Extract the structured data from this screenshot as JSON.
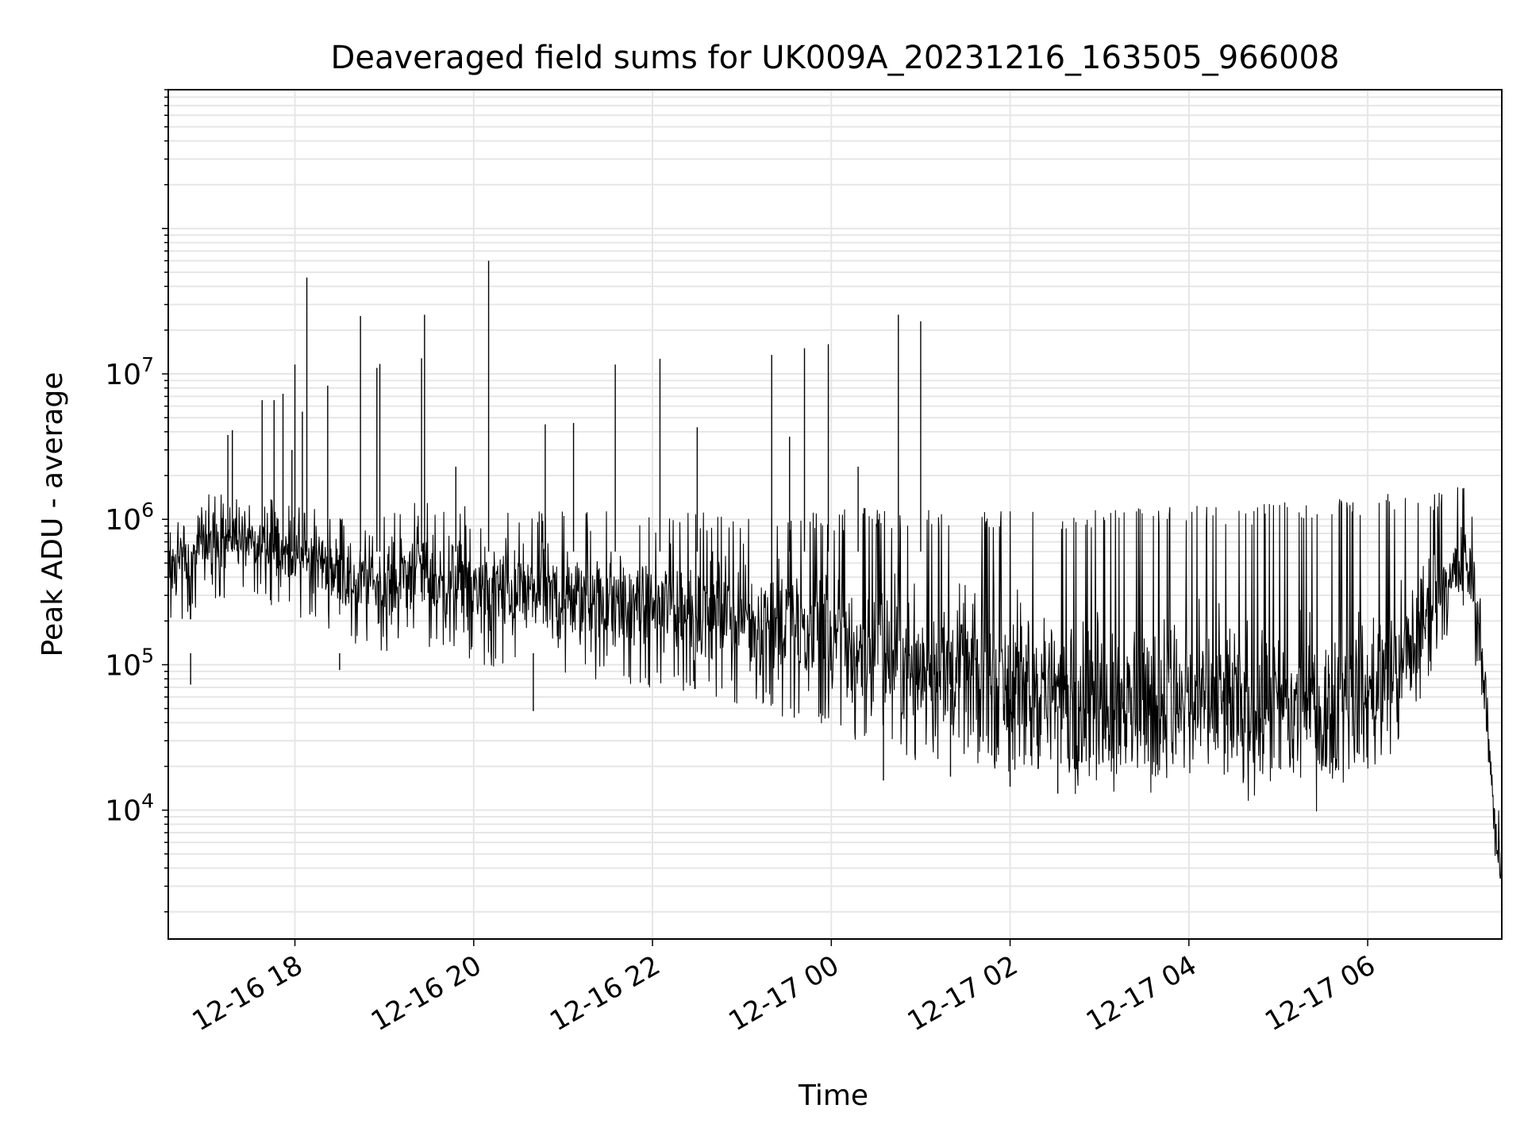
{
  "chart_data": {
    "type": "line",
    "title": "Deaveraged field sums for UK009A_20231216_163505_966008",
    "xlabel": "Time",
    "ylabel": "Peak ADU - average",
    "y_scale": "log",
    "ylim": [
      1300,
      900000000
    ],
    "xlim": [
      "2023-12-16 16:35",
      "2023-12-17 07:30"
    ],
    "grid": "on",
    "line_color": "#000000",
    "grid_color": "#e6e6e6",
    "x_ticks": [
      {
        "t": "2023-12-16 18:00",
        "label": "12-16 18"
      },
      {
        "t": "2023-12-16 20:00",
        "label": "12-16 20"
      },
      {
        "t": "2023-12-16 22:00",
        "label": "12-16 22"
      },
      {
        "t": "2023-12-17 00:00",
        "label": "12-17 00"
      },
      {
        "t": "2023-12-17 02:00",
        "label": "12-17 02"
      },
      {
        "t": "2023-12-17 04:00",
        "label": "12-17 04"
      },
      {
        "t": "2023-12-17 06:00",
        "label": "12-17 06"
      }
    ],
    "y_ticks": [
      {
        "v": 10000,
        "base": "10",
        "exp": "4"
      },
      {
        "v": 100000,
        "base": "10",
        "exp": "5"
      },
      {
        "v": 1000000,
        "base": "10",
        "exp": "6"
      },
      {
        "v": 10000000,
        "base": "10",
        "exp": "7"
      }
    ],
    "series": [
      {
        "x": [
          "2023-12-16 16:35",
          "2023-12-16 16:50",
          "2023-12-16 17:05",
          "2023-12-16 17:20",
          "2023-12-16 17:35",
          "2023-12-16 17:50",
          "2023-12-16 18:05",
          "2023-12-16 18:20",
          "2023-12-16 18:35",
          "2023-12-16 18:50",
          "2023-12-16 19:05",
          "2023-12-16 19:20",
          "2023-12-16 19:35",
          "2023-12-16 19:50",
          "2023-12-16 20:05",
          "2023-12-16 20:20",
          "2023-12-16 20:35",
          "2023-12-16 20:50",
          "2023-12-16 21:05",
          "2023-12-16 21:20",
          "2023-12-16 21:35",
          "2023-12-16 21:50",
          "2023-12-16 22:05",
          "2023-12-16 22:20",
          "2023-12-16 22:35",
          "2023-12-16 22:50",
          "2023-12-16 23:05",
          "2023-12-16 23:20",
          "2023-12-16 23:35",
          "2023-12-16 23:50",
          "2023-12-17 00:05",
          "2023-12-17 00:20",
          "2023-12-17 00:35",
          "2023-12-17 00:50",
          "2023-12-17 01:05",
          "2023-12-17 01:20",
          "2023-12-17 01:35",
          "2023-12-17 01:50",
          "2023-12-17 02:05",
          "2023-12-17 02:20",
          "2023-12-17 02:35",
          "2023-12-17 02:50",
          "2023-12-17 03:05",
          "2023-12-17 03:20",
          "2023-12-17 03:35",
          "2023-12-17 03:50",
          "2023-12-17 04:05",
          "2023-12-17 04:20",
          "2023-12-17 04:35",
          "2023-12-17 04:50",
          "2023-12-17 05:05",
          "2023-12-17 05:20",
          "2023-12-17 05:35",
          "2023-12-17 05:50",
          "2023-12-17 06:05",
          "2023-12-17 06:20",
          "2023-12-17 06:35",
          "2023-12-17 06:50",
          "2023-12-17 07:05",
          "2023-12-17 07:10",
          "2023-12-17 07:15",
          "2023-12-17 07:20",
          "2023-12-17 07:25",
          "2023-12-17 07:30"
        ],
        "y_median": [
          500000,
          520000,
          700000,
          800000,
          650000,
          600000,
          550000,
          500000,
          400000,
          380000,
          360000,
          500000,
          380000,
          360000,
          340000,
          330000,
          310000,
          290000,
          270000,
          280000,
          270000,
          260000,
          250000,
          240000,
          230000,
          220000,
          210000,
          200000,
          190000,
          170000,
          140000,
          130000,
          115000,
          105000,
          98000,
          90000,
          85000,
          80000,
          75000,
          70000,
          65000,
          63000,
          60000,
          58000,
          56000,
          55000,
          53000,
          52000,
          51000,
          50000,
          50000,
          52000,
          55000,
          60000,
          70000,
          85000,
          180000,
          350000,
          500000,
          400000,
          200000,
          40000,
          10000,
          3000
        ],
        "y_low": [
          200000,
          220000,
          300000,
          330000,
          280000,
          250000,
          230000,
          200000,
          150000,
          140000,
          130000,
          170000,
          130000,
          120000,
          110000,
          100000,
          95000,
          90000,
          85000,
          85000,
          80000,
          78000,
          75000,
          70000,
          65000,
          60000,
          55000,
          50000,
          45000,
          40000,
          33000,
          30000,
          27000,
          25000,
          24000,
          23000,
          22000,
          21000,
          20000,
          19500,
          19000,
          19000,
          18500,
          18500,
          18000,
          18000,
          18000,
          18000,
          18500,
          19000,
          19000,
          19500,
          20000,
          21000,
          24000,
          28000,
          60000,
          150000,
          250000,
          160000,
          70000,
          14000,
          4500,
          2200
        ],
        "y_high": [
          1000000,
          1100000,
          1500000,
          1600000,
          1400000,
          1300000,
          1200000,
          1100000,
          1000000,
          1000000,
          1100000,
          1400000,
          1200000,
          1200000,
          1150000,
          1100000,
          1100000,
          1200000,
          1150000,
          1100000,
          1100000,
          1100000,
          1050000,
          1100000,
          1100000,
          1100000,
          1050000,
          1100000,
          1100000,
          1100000,
          1100000,
          1150000,
          1100000,
          1100000,
          1100000,
          1100000,
          1100000,
          1100000,
          1100000,
          1100000,
          1100000,
          1100000,
          1150000,
          1200000,
          1200000,
          1200000,
          1200000,
          1200000,
          1200000,
          1250000,
          1250000,
          1300000,
          1300000,
          1350000,
          1400000,
          1450000,
          1500000,
          1550000,
          1600000,
          1200000,
          600000,
          100000,
          20000,
          6000
        ]
      }
    ],
    "spikes": [
      {
        "t": "2023-12-16 17:15",
        "v": 3800000
      },
      {
        "t": "2023-12-16 17:18",
        "v": 4100000
      },
      {
        "t": "2023-12-16 17:38",
        "v": 6600000
      },
      {
        "t": "2023-12-16 17:46",
        "v": 6600000
      },
      {
        "t": "2023-12-16 17:52",
        "v": 7300000
      },
      {
        "t": "2023-12-16 17:58",
        "v": 3000000
      },
      {
        "t": "2023-12-16 18:00",
        "v": 11600000
      },
      {
        "t": "2023-12-16 18:05",
        "v": 5500000
      },
      {
        "t": "2023-12-16 18:08",
        "v": 46000000
      },
      {
        "t": "2023-12-16 18:22",
        "v": 8300000
      },
      {
        "t": "2023-12-16 18:44",
        "v": 25000000
      },
      {
        "t": "2023-12-16 18:55",
        "v": 11000000
      },
      {
        "t": "2023-12-16 18:57",
        "v": 11700000
      },
      {
        "t": "2023-12-16 19:25",
        "v": 12800000
      },
      {
        "t": "2023-12-16 19:27",
        "v": 25500000
      },
      {
        "t": "2023-12-16 19:48",
        "v": 2300000
      },
      {
        "t": "2023-12-16 20:10",
        "v": 60000000
      },
      {
        "t": "2023-12-16 20:48",
        "v": 4500000
      },
      {
        "t": "2023-12-16 21:07",
        "v": 4600000
      },
      {
        "t": "2023-12-16 21:35",
        "v": 11600000
      },
      {
        "t": "2023-12-16 22:05",
        "v": 12700000
      },
      {
        "t": "2023-12-16 22:30",
        "v": 4300000
      },
      {
        "t": "2023-12-16 23:20",
        "v": 13500000
      },
      {
        "t": "2023-12-16 23:32",
        "v": 3700000
      },
      {
        "t": "2023-12-16 23:42",
        "v": 15000000
      },
      {
        "t": "2023-12-16 23:58",
        "v": 16000000
      },
      {
        "t": "2023-12-17 00:18",
        "v": 2300000
      },
      {
        "t": "2023-12-17 00:45",
        "v": 25500000
      },
      {
        "t": "2023-12-17 01:00",
        "v": 23000000
      }
    ],
    "dips": [
      {
        "t": "2023-12-16 16:50",
        "v": 73000
      },
      {
        "t": "2023-12-16 18:30",
        "v": 92000
      },
      {
        "t": "2023-12-16 20:40",
        "v": 48000
      },
      {
        "t": "2023-12-17 00:35",
        "v": 16000
      },
      {
        "t": "2023-12-17 02:00",
        "v": 14500
      },
      {
        "t": "2023-12-17 02:32",
        "v": 13000
      },
      {
        "t": "2023-12-17 01:20",
        "v": 17000
      }
    ]
  }
}
